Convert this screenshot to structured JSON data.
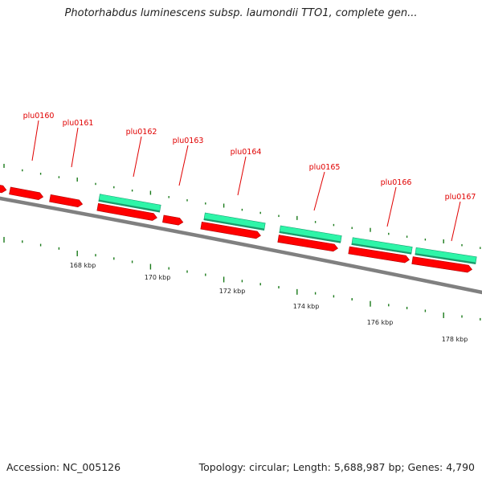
{
  "title": "Photorhabdus luminescens subsp. laumondii TTO1, complete gen...",
  "footer": {
    "accession": "Accession: NC_005126",
    "summary": "Topology: circular; Length: 5,688,987 bp; Genes: 4,790"
  },
  "genes": [
    "plu0160",
    "plu0161",
    "plu0162",
    "plu0163",
    "plu0164",
    "plu0165",
    "plu0166",
    "plu0167"
  ],
  "scale_labels": [
    "168 kbp",
    "170 kbp",
    "172 kbp",
    "174 kbp",
    "176 kbp",
    "178 kbp"
  ],
  "colors": {
    "cds": "#ff0000",
    "gene_feature": "#2ef5a8",
    "backbone": "#808080",
    "tick": "#1a7a1a",
    "label": "#e00000"
  }
}
